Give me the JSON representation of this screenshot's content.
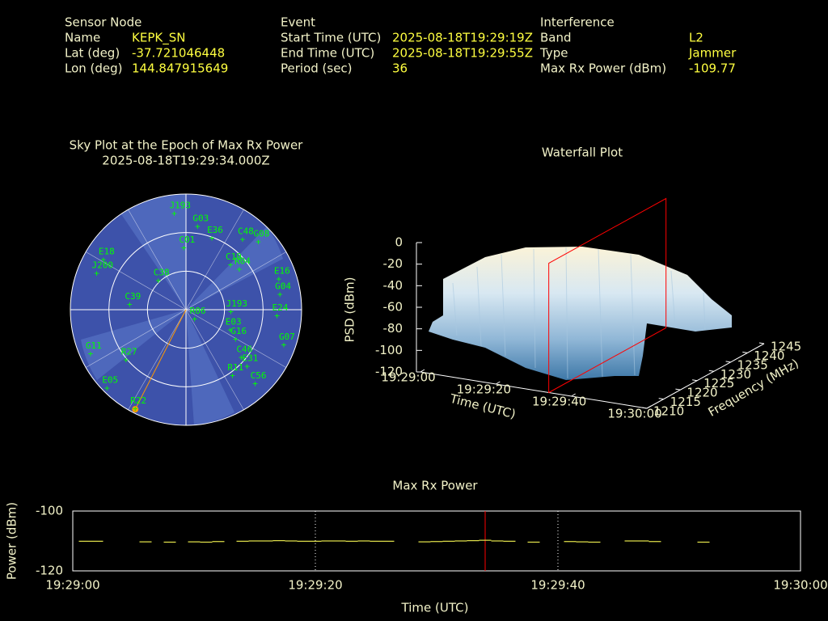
{
  "header": {
    "columns": [
      {
        "title": "Sensor Node",
        "fields": [
          {
            "label": "Name",
            "value": "KEPK_SN"
          },
          {
            "label": "Lat (deg)",
            "value": "-37.721046448"
          },
          {
            "label": "Lon (deg)",
            "value": "144.847915649"
          }
        ]
      },
      {
        "title": "Event",
        "fields": [
          {
            "label": "Start Time (UTC)",
            "value": "2025-08-18T19:29:19Z"
          },
          {
            "label": "End Time (UTC)",
            "value": "2025-08-18T19:29:55Z"
          },
          {
            "label": "Period (sec)",
            "value": "36"
          }
        ]
      },
      {
        "title": "Interference",
        "fields": [
          {
            "label": "Band",
            "value": "L2"
          },
          {
            "label": "Type",
            "value": "Jammer"
          },
          {
            "label": "Max Rx Power (dBm)",
            "value": "-109.77"
          }
        ]
      }
    ]
  },
  "chart_data": [
    {
      "type": "polar",
      "title": "Sky Plot at the Epoch of Max Rx Power",
      "subtitle": "2025-08-18T19:29:34.000Z",
      "color": "#00ff00",
      "highlight": "R22",
      "highlight_color": "#ff9900",
      "elticks": [
        0,
        30,
        60
      ],
      "points": [
        {
          "name": "J193",
          "az": 353,
          "el": 15
        },
        {
          "name": "G03",
          "az": 8,
          "el": 25
        },
        {
          "name": "E36",
          "az": 20,
          "el": 31
        },
        {
          "name": "C48",
          "az": 39,
          "el": 20
        },
        {
          "name": "G08",
          "az": 47,
          "el": 13
        },
        {
          "name": "C19",
          "az": 45,
          "el": 41
        },
        {
          "name": "R04",
          "az": 53,
          "el": 38
        },
        {
          "name": "E16",
          "az": 72,
          "el": 14
        },
        {
          "name": "G04",
          "az": 81,
          "el": 16
        },
        {
          "name": "E24",
          "az": 94,
          "el": 19
        },
        {
          "name": "J193",
          "az": 93,
          "el": 55
        },
        {
          "name": "G07",
          "az": 110,
          "el": 9
        },
        {
          "name": "E03",
          "az": 115,
          "el": 52
        },
        {
          "name": "G16",
          "az": 121,
          "el": 45
        },
        {
          "name": "C46",
          "az": 131,
          "el": 33
        },
        {
          "name": "E31",
          "az": 133,
          "el": 25
        },
        {
          "name": "R11",
          "az": 145,
          "el": 27
        },
        {
          "name": "C56",
          "az": 137,
          "el": 11
        },
        {
          "name": "R22",
          "az": 207,
          "el": 3
        },
        {
          "name": "R27",
          "az": 230,
          "el": 29
        },
        {
          "name": "E05",
          "az": 225,
          "el": 3
        },
        {
          "name": "G11",
          "az": 245,
          "el": 8
        },
        {
          "name": "E18",
          "az": 301,
          "el": 15
        },
        {
          "name": "J200",
          "az": 292,
          "el": 15
        },
        {
          "name": "C39",
          "az": 275,
          "el": 46
        },
        {
          "name": "C38",
          "az": 316,
          "el": 59
        },
        {
          "name": "C01",
          "az": 358,
          "el": 42
        },
        {
          "name": "R06",
          "az": 138,
          "el": 80
        }
      ]
    },
    {
      "type": "surface",
      "title": "Waterfall Plot",
      "xlabel": "Time (UTC)",
      "ylabel": "Frequency (MHz)",
      "zlabel": "PSD (dBm)",
      "xticks": [
        "19:29:00",
        "19:29:20",
        "19:29:40",
        "19:30:00"
      ],
      "ylim": [
        1210,
        1245
      ],
      "yticks": [
        1210,
        1215,
        1220,
        1225,
        1230,
        1235,
        1240,
        1245
      ],
      "zlim": [
        -120,
        0
      ],
      "zticks": [
        0,
        -20,
        -40,
        -60,
        -80,
        -100,
        -120
      ],
      "marker": "19:29:34",
      "marker_color": "#ff0000"
    },
    {
      "type": "line",
      "title": "Max Rx Power",
      "xlabel": "Time (UTC)",
      "ylabel": "Power (dBm)",
      "color": "#e6e64c",
      "x": [
        "19:29:00",
        "19:29:01",
        "19:29:02",
        "19:29:03",
        "19:29:04",
        "19:29:05",
        "19:29:06",
        "19:29:07",
        "19:29:08",
        "19:29:09",
        "19:29:10",
        "19:29:11",
        "19:29:12",
        "19:29:13",
        "19:29:14",
        "19:29:15",
        "19:29:16",
        "19:29:17",
        "19:29:18",
        "19:29:19",
        "19:29:20",
        "19:29:21",
        "19:29:22",
        "19:29:23",
        "19:29:24",
        "19:29:25",
        "19:29:26",
        "19:29:27",
        "19:29:28",
        "19:29:29",
        "19:29:30",
        "19:29:31",
        "19:29:32",
        "19:29:33",
        "19:29:34",
        "19:29:35",
        "19:29:36",
        "19:29:37",
        "19:29:38",
        "19:29:39",
        "19:29:40",
        "19:29:41",
        "19:29:42",
        "19:29:43",
        "19:29:44",
        "19:29:45",
        "19:29:46",
        "19:29:47",
        "19:29:48",
        "19:29:49",
        "19:29:50",
        "19:29:51",
        "19:29:52",
        "19:29:53",
        "19:29:54",
        "19:29:55",
        "19:29:56",
        "19:29:57",
        "19:29:58",
        "19:29:59",
        "19:30:00"
      ],
      "values": [
        null,
        -110.1,
        -110.1,
        null,
        null,
        null,
        -110.3,
        null,
        -110.4,
        null,
        -110.3,
        -110.4,
        -110.2,
        null,
        -110.1,
        -110.0,
        -110.0,
        -109.9,
        -110.0,
        -110.1,
        -110.1,
        -110.0,
        -110.0,
        -110.1,
        -110.0,
        -110.1,
        -110.1,
        null,
        null,
        -110.3,
        -110.2,
        -110.1,
        -110.0,
        -109.9,
        -109.77,
        -110.0,
        -110.1,
        null,
        -110.4,
        null,
        null,
        -110.2,
        -110.3,
        -110.4,
        null,
        null,
        -110.0,
        -110.0,
        -110.2,
        null,
        null,
        null,
        -110.4,
        null,
        null,
        null,
        null,
        null,
        null,
        null,
        null
      ],
      "xlim": [
        "19:29:00",
        "19:30:00"
      ],
      "xticks": [
        "19:29:00",
        "19:29:20",
        "19:29:40",
        "19:30:00"
      ],
      "ylim": [
        -120,
        -100
      ],
      "yticks": [
        -100,
        -120
      ],
      "grid": true,
      "marker": "19:29:34",
      "marker_color": "#ff0000"
    }
  ]
}
